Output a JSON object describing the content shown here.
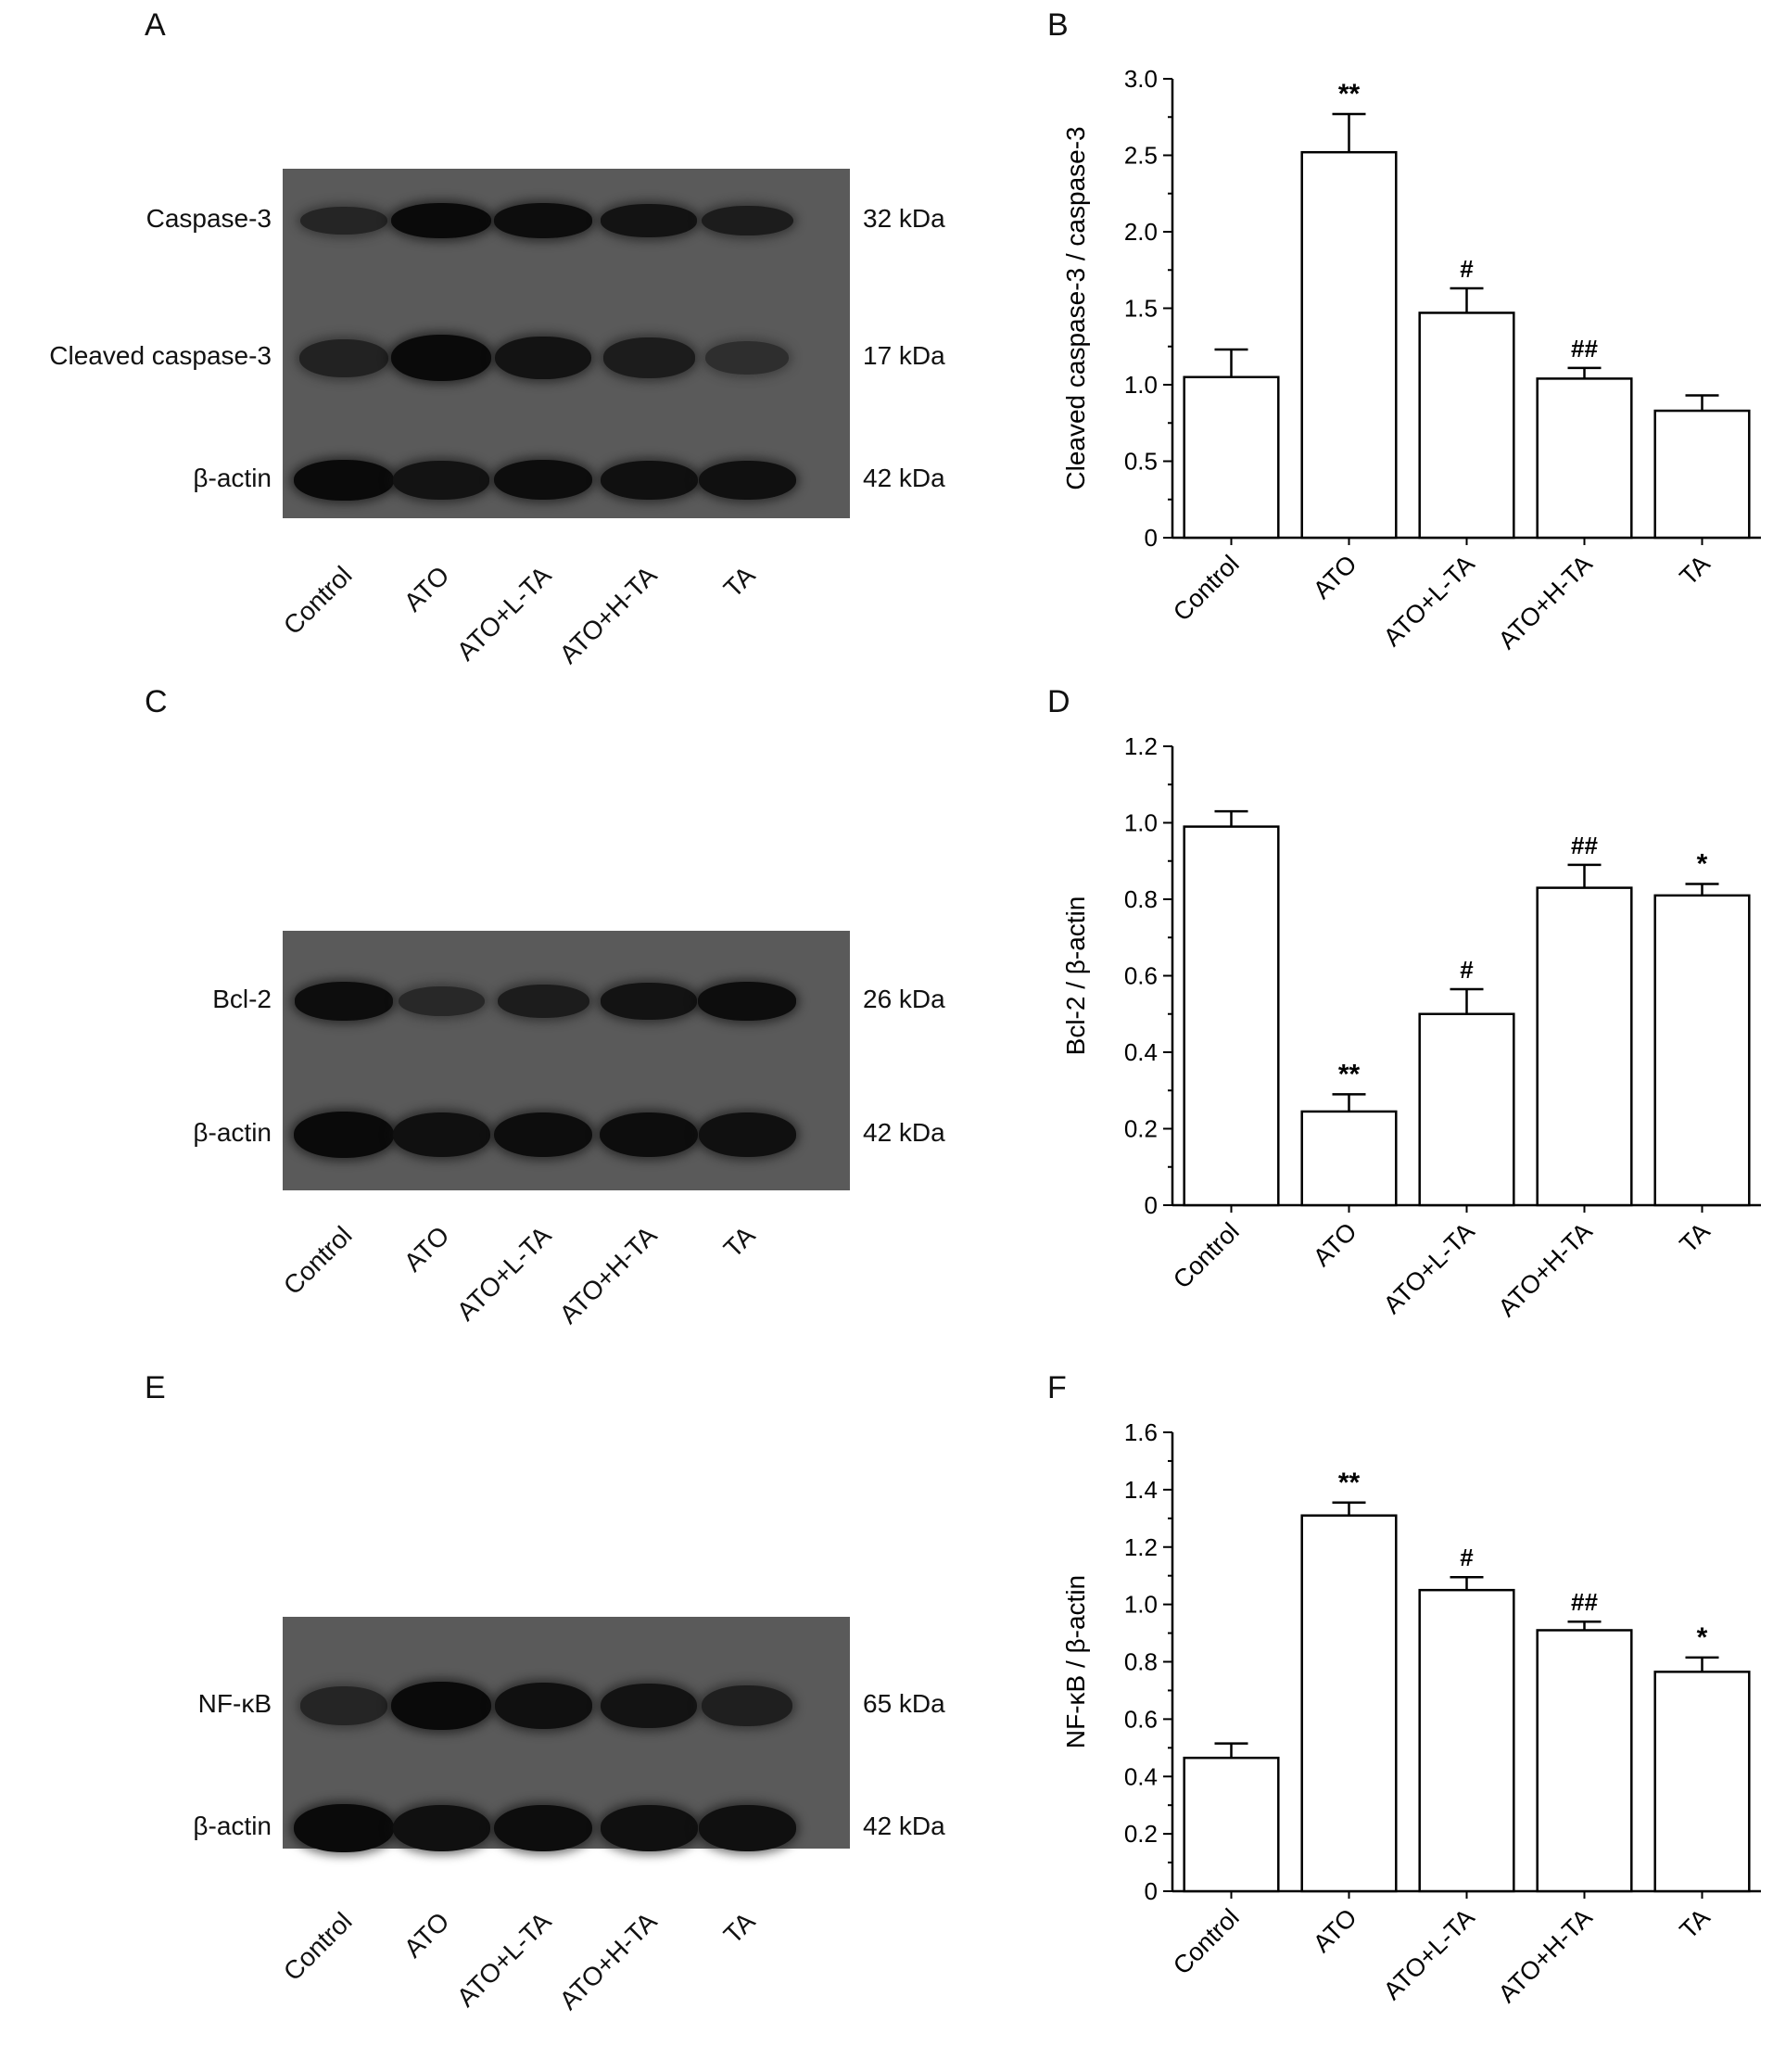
{
  "panels": {
    "A": "A",
    "B": "B",
    "C": "C",
    "D": "D",
    "E": "E",
    "F": "F"
  },
  "lanes": [
    "Control",
    "ATO",
    "ATO+L-TA",
    "ATO+H-TA",
    "TA"
  ],
  "blots": [
    {
      "panel": "A",
      "rows": [
        {
          "label": "Caspase-3",
          "kda": "32 kDa",
          "intensity": [
            0.55,
            1.0,
            0.95,
            0.85,
            0.7
          ]
        },
        {
          "label": "Cleaved caspase-3",
          "kda": "17 kDa",
          "intensity": [
            0.6,
            1.0,
            0.85,
            0.7,
            0.4
          ]
        },
        {
          "label": "β-actin",
          "kda": "42 kDa",
          "intensity": [
            1.0,
            0.85,
            0.95,
            0.9,
            0.9
          ]
        }
      ]
    },
    {
      "panel": "C",
      "rows": [
        {
          "label": "Bcl-2",
          "kda": "26 kDa",
          "intensity": [
            0.95,
            0.5,
            0.7,
            0.85,
            0.95
          ]
        },
        {
          "label": "β-actin",
          "kda": "42 kDa",
          "intensity": [
            1.0,
            0.9,
            0.95,
            0.95,
            0.9
          ]
        }
      ]
    },
    {
      "panel": "E",
      "rows": [
        {
          "label": "NF-κB",
          "kda": "65 kDa",
          "intensity": [
            0.55,
            1.0,
            0.9,
            0.85,
            0.65
          ]
        },
        {
          "label": "β-actin",
          "kda": "42 kDa",
          "intensity": [
            1.0,
            0.9,
            0.95,
            0.9,
            0.9
          ]
        }
      ]
    }
  ],
  "chart_data": [
    {
      "panel": "B",
      "type": "bar",
      "categories": [
        "Control",
        "ATO",
        "ATO+L-TA",
        "ATO+H-TA",
        "TA"
      ],
      "values": [
        1.05,
        2.52,
        1.47,
        1.04,
        0.83
      ],
      "errors": [
        0.18,
        0.25,
        0.16,
        0.07,
        0.1
      ],
      "annotations": [
        "",
        "**",
        "#",
        "##",
        ""
      ],
      "ylabel": "Cleaved caspase-3 / caspase-3",
      "ylim": [
        0,
        3.0
      ],
      "yticks": [
        "0",
        "0.5",
        "1.0",
        "1.5",
        "2.0",
        "2.5",
        "3.0"
      ],
      "ytick_values": [
        0,
        0.5,
        1.0,
        1.5,
        2.0,
        2.5,
        3.0
      ]
    },
    {
      "panel": "D",
      "type": "bar",
      "categories": [
        "Control",
        "ATO",
        "ATO+L-TA",
        "ATO+H-TA",
        "TA"
      ],
      "values": [
        0.99,
        0.245,
        0.5,
        0.83,
        0.81
      ],
      "errors": [
        0.04,
        0.045,
        0.065,
        0.06,
        0.03
      ],
      "annotations": [
        "",
        "**",
        "#",
        "##",
        "*"
      ],
      "ylabel": "Bcl-2 / β-actin",
      "ylim": [
        0,
        1.2
      ],
      "yticks": [
        "0",
        "0.2",
        "0.4",
        "0.6",
        "0.8",
        "1.0",
        "1.2"
      ],
      "ytick_values": [
        0,
        0.2,
        0.4,
        0.6,
        0.8,
        1.0,
        1.2
      ]
    },
    {
      "panel": "F",
      "type": "bar",
      "categories": [
        "Control",
        "ATO",
        "ATO+L-TA",
        "ATO+H-TA",
        "TA"
      ],
      "values": [
        0.465,
        1.31,
        1.05,
        0.91,
        0.765
      ],
      "errors": [
        0.05,
        0.045,
        0.045,
        0.03,
        0.05
      ],
      "annotations": [
        "",
        "**",
        "#",
        "##",
        "*"
      ],
      "ylabel": "NF-κB / β-actin",
      "ylim": [
        0,
        1.6
      ],
      "yticks": [
        "0",
        "0.2",
        "0.4",
        "0.6",
        "0.8",
        "1.0",
        "1.2",
        "1.4",
        "1.6"
      ],
      "ytick_values": [
        0,
        0.2,
        0.4,
        0.6,
        0.8,
        1.0,
        1.2,
        1.4,
        1.6
      ]
    }
  ]
}
